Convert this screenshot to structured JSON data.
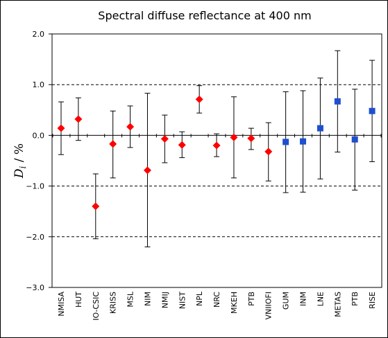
{
  "chart_data": {
    "type": "scatter",
    "title": "Spectral diffuse reflectance at 400 nm",
    "ylabel_main": "D",
    "ylabel_sub": "i",
    "ylabel_rest": " / %",
    "xlabel": "",
    "ylim": [
      -3.0,
      2.0
    ],
    "yticks": [
      "2.0",
      "1.0",
      "0.0",
      "−1.0",
      "−2.0",
      "−3.0"
    ],
    "yticks_values": [
      2.0,
      1.0,
      0.0,
      -1.0,
      -2.0,
      -3.0
    ],
    "dashed_gridlines": [
      1.0,
      -1.0,
      -2.0
    ],
    "zero_line": 0.0,
    "grid": true,
    "legend": "none",
    "colors": {
      "red_diamond": "#ff0000",
      "blue_square": "#1f4fcf",
      "error_bar": "#000000"
    },
    "categories": [
      "NMISA",
      "HUT",
      "IO-CSIC",
      "KRISS",
      "MSL",
      "NIM",
      "NMIJ",
      "NIST",
      "NPL",
      "NRC",
      "MKEH",
      "PTB",
      "VNIIOFI",
      "GUM",
      "INM",
      "LNE",
      "METAS",
      "PTB",
      "RISE"
    ],
    "points": [
      {
        "label": "NMISA",
        "y": 0.14,
        "low": -0.38,
        "high": 0.66,
        "marker": "diamond",
        "color": "#ff0000"
      },
      {
        "label": "HUT",
        "y": 0.32,
        "low": -0.1,
        "high": 0.74,
        "marker": "diamond",
        "color": "#ff0000"
      },
      {
        "label": "IO-CSIC",
        "y": -1.4,
        "low": -2.04,
        "high": -0.76,
        "marker": "diamond",
        "color": "#ff0000"
      },
      {
        "label": "KRISS",
        "y": -0.17,
        "low": -0.84,
        "high": 0.48,
        "marker": "diamond",
        "color": "#ff0000"
      },
      {
        "label": "MSL",
        "y": 0.17,
        "low": -0.24,
        "high": 0.58,
        "marker": "diamond",
        "color": "#ff0000"
      },
      {
        "label": "NIM",
        "y": -0.69,
        "low": -2.2,
        "high": 0.83,
        "marker": "diamond",
        "color": "#ff0000"
      },
      {
        "label": "NMIJ",
        "y": -0.07,
        "low": -0.54,
        "high": 0.4,
        "marker": "diamond",
        "color": "#ff0000"
      },
      {
        "label": "NIST",
        "y": -0.19,
        "low": -0.44,
        "high": 0.07,
        "marker": "diamond",
        "color": "#ff0000"
      },
      {
        "label": "NPL",
        "y": 0.71,
        "low": 0.44,
        "high": 0.98,
        "marker": "diamond",
        "color": "#ff0000"
      },
      {
        "label": "NRC",
        "y": -0.2,
        "low": -0.42,
        "high": 0.03,
        "marker": "diamond",
        "color": "#ff0000"
      },
      {
        "label": "MKEH",
        "y": -0.04,
        "low": -0.84,
        "high": 0.76,
        "marker": "diamond",
        "color": "#ff0000"
      },
      {
        "label": "PTB",
        "y": -0.06,
        "low": -0.28,
        "high": 0.14,
        "marker": "diamond",
        "color": "#ff0000"
      },
      {
        "label": "VNIIOFI",
        "y": -0.32,
        "low": -0.9,
        "high": 0.25,
        "marker": "diamond",
        "color": "#ff0000"
      },
      {
        "label": "GUM",
        "y": -0.13,
        "low": -1.13,
        "high": 0.86,
        "marker": "square",
        "color": "#1f4fcf"
      },
      {
        "label": "INM",
        "y": -0.12,
        "low": -1.12,
        "high": 0.88,
        "marker": "square",
        "color": "#1f4fcf"
      },
      {
        "label": "LNE",
        "y": 0.14,
        "low": -0.86,
        "high": 1.13,
        "marker": "square",
        "color": "#1f4fcf"
      },
      {
        "label": "METAS",
        "y": 0.67,
        "low": -0.33,
        "high": 1.67,
        "marker": "square",
        "color": "#1f4fcf"
      },
      {
        "label": "PTB",
        "y": -0.08,
        "low": -1.08,
        "high": 0.91,
        "marker": "square",
        "color": "#1f4fcf"
      },
      {
        "label": "RISE",
        "y": 0.48,
        "low": -0.52,
        "high": 1.48,
        "marker": "square",
        "color": "#1f4fcf"
      }
    ]
  }
}
